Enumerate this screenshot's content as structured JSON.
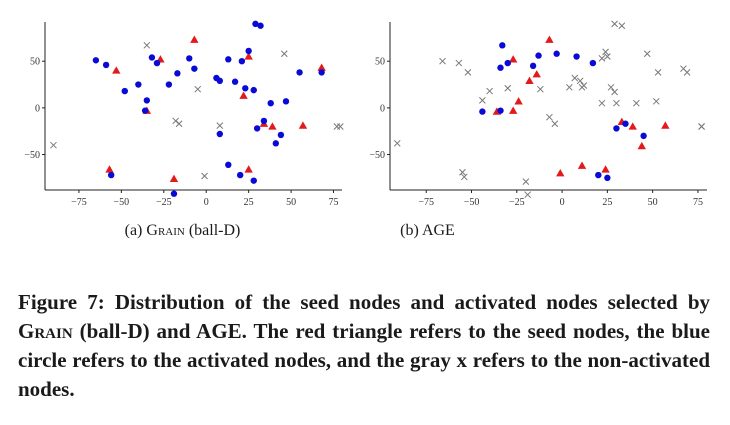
{
  "chart_data": [
    {
      "type": "scatter",
      "panel_label": "(a)",
      "method": "Grain",
      "method_suffix": " (ball-D)",
      "xlim": [
        -95,
        80
      ],
      "ylim": [
        -88,
        92
      ],
      "xticks": [
        -75,
        -50,
        -25,
        0,
        25,
        50,
        75
      ],
      "yticks": [
        -50,
        0,
        50
      ],
      "grid": false,
      "legend": "none",
      "series": [
        {
          "marker": "triangle",
          "color": "#e31a1c",
          "points": [
            [
              -7,
              73
            ],
            [
              -27,
              52
            ],
            [
              -53,
              40
            ],
            [
              25,
              55
            ],
            [
              22,
              13
            ],
            [
              -35,
              -3
            ],
            [
              68,
              43
            ],
            [
              34,
              -17
            ],
            [
              39,
              -20
            ],
            [
              57,
              -19
            ],
            [
              25,
              -66
            ],
            [
              -57,
              -66
            ],
            [
              -19,
              -76
            ]
          ]
        },
        {
          "marker": "circle",
          "color": "#0a0ad6",
          "points": [
            [
              -65,
              51
            ],
            [
              -59,
              46
            ],
            [
              -48,
              18
            ],
            [
              -40,
              25
            ],
            [
              -35,
              8
            ],
            [
              -32,
              54
            ],
            [
              -29,
              48
            ],
            [
              -22,
              25
            ],
            [
              -17,
              37
            ],
            [
              -10,
              53
            ],
            [
              -7,
              42
            ],
            [
              -36,
              -3
            ],
            [
              6,
              32
            ],
            [
              8,
              29
            ],
            [
              13,
              52
            ],
            [
              21,
              50
            ],
            [
              17,
              28
            ],
            [
              23,
              21
            ],
            [
              25,
              61
            ],
            [
              29,
              90
            ],
            [
              32,
              88
            ],
            [
              28,
              19
            ],
            [
              30,
              -22
            ],
            [
              34,
              -14
            ],
            [
              38,
              5
            ],
            [
              41,
              -38
            ],
            [
              44,
              -29
            ],
            [
              47,
              7
            ],
            [
              55,
              38
            ],
            [
              68,
              38
            ],
            [
              8,
              -28
            ],
            [
              13,
              -61
            ],
            [
              20,
              -72
            ],
            [
              28,
              -78
            ],
            [
              -19,
              -92
            ],
            [
              -56,
              -72
            ]
          ]
        },
        {
          "marker": "x",
          "color": "#777777",
          "points": [
            [
              -35,
              67
            ],
            [
              -90,
              -40
            ],
            [
              -18,
              -14
            ],
            [
              -1,
              -73
            ],
            [
              46,
              58
            ],
            [
              79,
              -20
            ],
            [
              77,
              -20
            ],
            [
              -5,
              20
            ],
            [
              -16,
              -17
            ],
            [
              8,
              -19
            ]
          ]
        }
      ]
    },
    {
      "type": "scatter",
      "panel_label": "(b)",
      "method": "AGE",
      "method_suffix": "",
      "xlim": [
        -95,
        80
      ],
      "ylim": [
        -88,
        92
      ],
      "xticks": [
        -75,
        -50,
        -25,
        0,
        25,
        50,
        75
      ],
      "yticks": [
        -50,
        0,
        50
      ],
      "grid": false,
      "legend": "none",
      "series": [
        {
          "marker": "triangle",
          "color": "#e31a1c",
          "points": [
            [
              -7,
              73
            ],
            [
              -27,
              52
            ],
            [
              -18,
              29
            ],
            [
              -14,
              36
            ],
            [
              -24,
              7
            ],
            [
              -27,
              -3
            ],
            [
              -1,
              -70
            ],
            [
              11,
              -62
            ],
            [
              24,
              -66
            ],
            [
              -36,
              -4
            ],
            [
              39,
              -20
            ],
            [
              44,
              -41
            ],
            [
              57,
              -19
            ],
            [
              33,
              -15
            ]
          ]
        },
        {
          "marker": "circle",
          "color": "#0a0ad6",
          "points": [
            [
              -33,
              67
            ],
            [
              -30,
              48
            ],
            [
              -34,
              43
            ],
            [
              -16,
              45
            ],
            [
              -13,
              56
            ],
            [
              -3,
              58
            ],
            [
              17,
              48
            ],
            [
              -44,
              -4
            ],
            [
              -34,
              -3
            ],
            [
              8,
              55
            ],
            [
              20,
              -72
            ],
            [
              25,
              -75
            ],
            [
              30,
              -22
            ],
            [
              35,
              -17
            ],
            [
              45,
              -30
            ]
          ]
        },
        {
          "marker": "x",
          "color": "#777777",
          "points": [
            [
              -66,
              50
            ],
            [
              -57,
              48
            ],
            [
              -52,
              38
            ],
            [
              -40,
              18
            ],
            [
              -30,
              21
            ],
            [
              -12,
              20
            ],
            [
              -7,
              -10
            ],
            [
              -4,
              -17
            ],
            [
              -44,
              8
            ],
            [
              -55,
              -69
            ],
            [
              -54,
              -74
            ],
            [
              -20,
              -79
            ],
            [
              -19,
              -93
            ],
            [
              -91,
              -38
            ],
            [
              4,
              22
            ],
            [
              7,
              32
            ],
            [
              10,
              29
            ],
            [
              11,
              22
            ],
            [
              22,
              53
            ],
            [
              24,
              60
            ],
            [
              25,
              55
            ],
            [
              27,
              22
            ],
            [
              29,
              17
            ],
            [
              29,
              90
            ],
            [
              33,
              88
            ],
            [
              30,
              5
            ],
            [
              41,
              5
            ],
            [
              47,
              58
            ],
            [
              53,
              38
            ],
            [
              52,
              7
            ],
            [
              67,
              42
            ],
            [
              69,
              38
            ],
            [
              77,
              -20
            ],
            [
              77,
              -20
            ],
            [
              22,
              5
            ],
            [
              12,
              24
            ]
          ]
        }
      ]
    }
  ],
  "captions": {
    "figure_prefix": "Figure 7: Distribution of the seed nodes and activated nodes selected by ",
    "method_name": "Grain",
    "figure_suffix": " (ball-D) and AGE. The red triangle refers to the seed nodes, the blue circle refers to the activated nodes, and the gray x refers to the non-activated nodes."
  }
}
